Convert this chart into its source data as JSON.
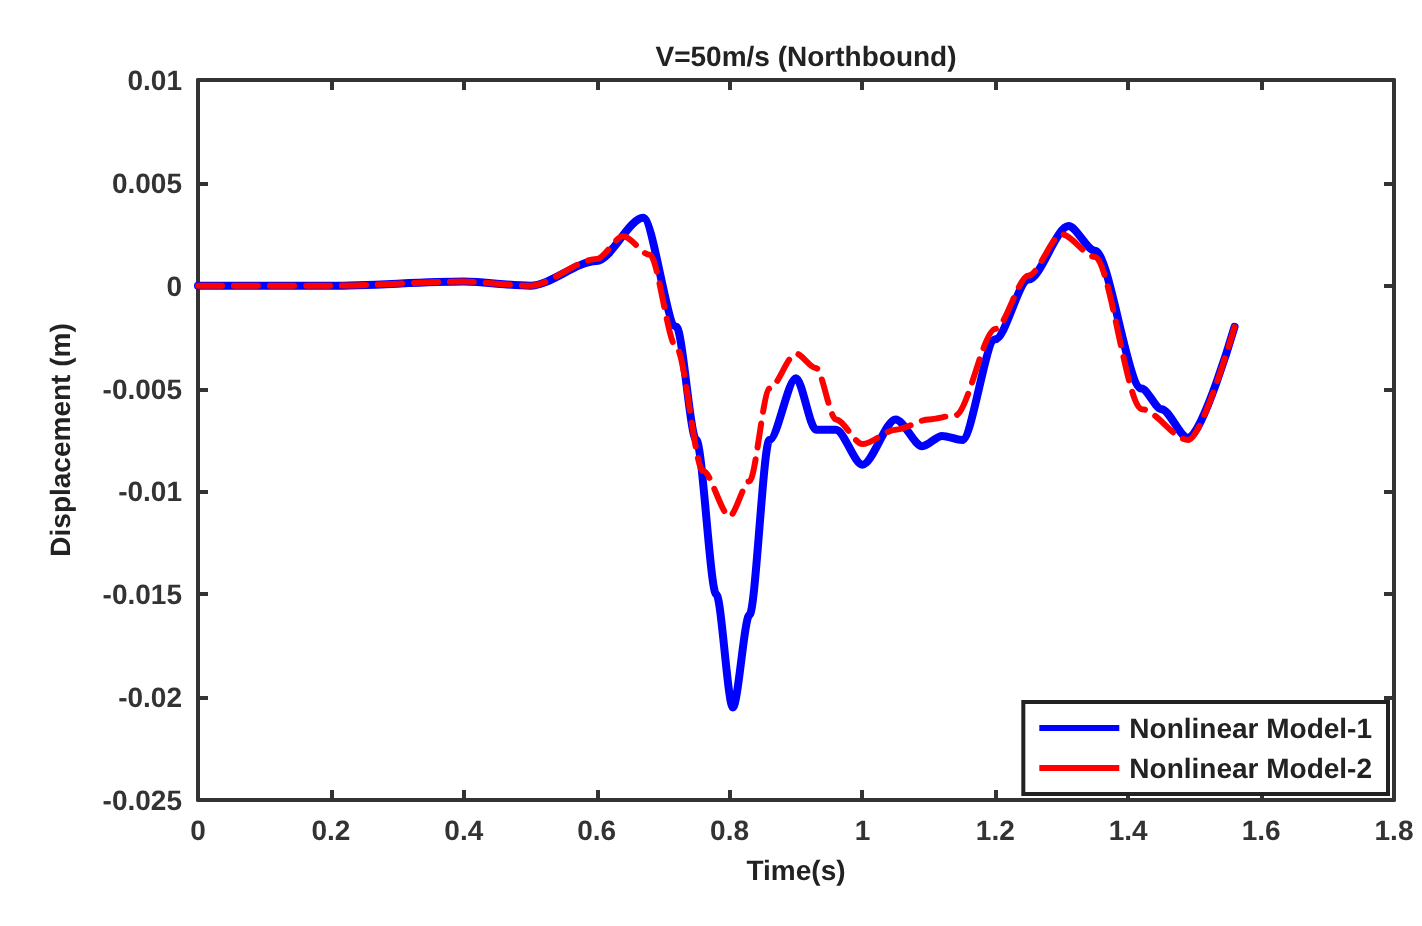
{
  "chart_data": {
    "type": "line",
    "title": "V=50m/s (Northbound)",
    "xlabel": "Time(s)",
    "ylabel": "Displacement (m)",
    "xlim": [
      0,
      1.8
    ],
    "xticks": [
      0,
      0.2,
      0.4,
      0.6,
      0.8,
      1,
      1.2,
      1.4,
      1.6,
      1.8
    ],
    "ylim": [
      -0.025,
      0.01
    ],
    "yticks": [
      -0.025,
      -0.02,
      -0.015,
      -0.01,
      -0.005,
      0,
      0.005,
      0.01
    ],
    "grid": false,
    "legend": "bottom right",
    "marker": "none",
    "series": [
      {
        "name": "Nonlinear Model-1",
        "color": "#0000ff",
        "line_style": "solid",
        "x": [
          0,
          0.2,
          0.4,
          0.5,
          0.6,
          0.67,
          0.72,
          0.75,
          0.78,
          0.805,
          0.83,
          0.86,
          0.9,
          0.93,
          0.96,
          1.0,
          1.05,
          1.09,
          1.12,
          1.15,
          1.2,
          1.25,
          1.31,
          1.35,
          1.42,
          1.45,
          1.49,
          1.56
        ],
        "values": [
          0,
          0,
          0.0002,
          0,
          0.0012,
          0.0033,
          -0.002,
          -0.0075,
          -0.015,
          -0.0205,
          -0.016,
          -0.0075,
          -0.0045,
          -0.007,
          -0.007,
          -0.0087,
          -0.0065,
          -0.0078,
          -0.0073,
          -0.0075,
          -0.0026,
          0.0003,
          0.0029,
          0.0017,
          -0.005,
          -0.006,
          -0.0074,
          -0.002
        ]
      },
      {
        "name": "Nonlinear Model-2",
        "color": "#ff0000",
        "line_style": "dashed",
        "x": [
          0,
          0.2,
          0.4,
          0.5,
          0.6,
          0.64,
          0.68,
          0.72,
          0.76,
          0.8,
          0.83,
          0.86,
          0.9,
          0.93,
          0.96,
          1.0,
          1.05,
          1.1,
          1.14,
          1.2,
          1.25,
          1.3,
          1.35,
          1.42,
          1.49,
          1.56
        ],
        "values": [
          0,
          0,
          0.0002,
          0,
          0.0013,
          0.0024,
          0.0015,
          -0.003,
          -0.009,
          -0.0112,
          -0.0095,
          -0.005,
          -0.0033,
          -0.004,
          -0.0065,
          -0.0077,
          -0.007,
          -0.0065,
          -0.0063,
          -0.0021,
          0.0005,
          0.0025,
          0.0014,
          -0.006,
          -0.0075,
          -0.002
        ]
      }
    ]
  }
}
